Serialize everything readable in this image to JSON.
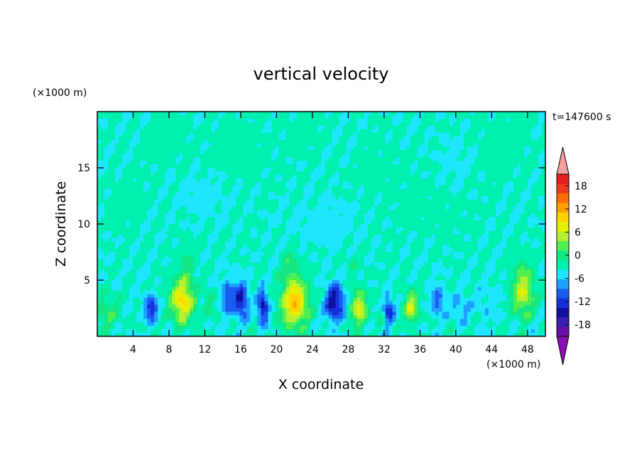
{
  "chart_data": {
    "type": "heatmap",
    "title": "vertical velocity",
    "xlabel": "X coordinate",
    "ylabel": "Z coordinate",
    "x_unit": "(×1000 m)",
    "y_unit": "(×1000 m)",
    "time_label": "t=147600 s",
    "xlim": [
      0,
      50
    ],
    "ylim": [
      0,
      20
    ],
    "x_ticks": [
      "4",
      "8",
      "12",
      "16",
      "20",
      "24",
      "28",
      "32",
      "36",
      "40",
      "44",
      "48"
    ],
    "y_ticks": [
      "5",
      "10",
      "15"
    ],
    "colorbar": {
      "range": [
        -21,
        21
      ],
      "step": 3,
      "tick_labels": [
        "18",
        "12",
        "6",
        "0",
        "-6",
        "-12",
        "-18"
      ],
      "colors": [
        "#6a0dad",
        "#3a1eb4",
        "#1010a0",
        "#1630d8",
        "#1a5cf0",
        "#1ea0ff",
        "#1ee6ff",
        "#00f0b0",
        "#14e684",
        "#50f050",
        "#b4f032",
        "#e6f000",
        "#ffd200",
        "#ffa000",
        "#ff6e00",
        "#f03c1e",
        "#e61e1e"
      ],
      "extend_low_color": "#8b10b4",
      "extend_high_color": "#f4a0a0"
    },
    "features": [
      {
        "x": 1.0,
        "z": 2.0,
        "amp": 6,
        "sx": 1.2,
        "sz": 1.6
      },
      {
        "x": 6.0,
        "z": 2.5,
        "amp": -12,
        "sx": 0.7,
        "sz": 1.1
      },
      {
        "x": 9.5,
        "z": 3.2,
        "amp": 16,
        "sx": 1.3,
        "sz": 1.9
      },
      {
        "x": 12.5,
        "z": 3.0,
        "amp": 4,
        "sx": 0.6,
        "sz": 1.2
      },
      {
        "x": 14.5,
        "z": 3.5,
        "amp": -9,
        "sx": 0.7,
        "sz": 1.4
      },
      {
        "x": 16.0,
        "z": 3.2,
        "amp": -14,
        "sx": 0.8,
        "sz": 1.5
      },
      {
        "x": 18.5,
        "z": 2.6,
        "amp": -14,
        "sx": 0.6,
        "sz": 1.5
      },
      {
        "x": 22.0,
        "z": 3.0,
        "amp": 18,
        "sx": 1.5,
        "sz": 2.1
      },
      {
        "x": 26.5,
        "z": 3.0,
        "amp": -16,
        "sx": 1.0,
        "sz": 1.5
      },
      {
        "x": 29.2,
        "z": 2.5,
        "amp": 13,
        "sx": 0.9,
        "sz": 1.6
      },
      {
        "x": 31.5,
        "z": 2.0,
        "amp": 3,
        "sx": 0.5,
        "sz": 1.0
      },
      {
        "x": 32.5,
        "z": 2.3,
        "amp": -12,
        "sx": 0.6,
        "sz": 1.1
      },
      {
        "x": 35.0,
        "z": 2.6,
        "amp": 12,
        "sx": 0.8,
        "sz": 1.4
      },
      {
        "x": 38.0,
        "z": 3.2,
        "amp": -8,
        "sx": 0.7,
        "sz": 1.3
      },
      {
        "x": 40.5,
        "z": 2.5,
        "amp": -5,
        "sx": 1.0,
        "sz": 1.0
      },
      {
        "x": 43.5,
        "z": 3.0,
        "amp": -2,
        "sx": 1.5,
        "sz": 2.0
      },
      {
        "x": 47.5,
        "z": 3.8,
        "amp": 12,
        "sx": 1.2,
        "sz": 2.0
      },
      {
        "x": 10.0,
        "z": 6.5,
        "amp": 4,
        "sx": 0.8,
        "sz": 1.5
      },
      {
        "x": 21.5,
        "z": 6.5,
        "amp": 5,
        "sx": 0.8,
        "sz": 1.3
      },
      {
        "x": 28.5,
        "z": 6.5,
        "amp": 3,
        "sx": 0.5,
        "sz": 1.0
      },
      {
        "x": 47.5,
        "z": 6.0,
        "amp": 3,
        "sx": 1.0,
        "sz": 1.2
      }
    ],
    "background_value": 0.2,
    "upper_patches": [
      {
        "x": 8,
        "z": 17.5,
        "amp": 1.5,
        "sx": 2.5,
        "sz": 2.0
      },
      {
        "x": 16,
        "z": 16.5,
        "amp": 1.6,
        "sx": 3.0,
        "sz": 2.5
      },
      {
        "x": 23,
        "z": 18.0,
        "amp": 1.4,
        "sx": 2.0,
        "sz": 1.5
      },
      {
        "x": 32,
        "z": 14.5,
        "amp": 1.2,
        "sx": 2.5,
        "sz": 2.5
      },
      {
        "x": 45,
        "z": 17.0,
        "amp": 1.6,
        "sx": 2.5,
        "sz": 2.5
      },
      {
        "x": 3,
        "z": 12.0,
        "amp": 1.2,
        "sx": 2.0,
        "sz": 2.0
      },
      {
        "x": 38,
        "z": 11.0,
        "amp": 1.2,
        "sx": 3.0,
        "sz": 2.0
      },
      {
        "x": 25,
        "z": 10.0,
        "amp": -1.3,
        "sx": 4.0,
        "sz": 2.0
      },
      {
        "x": 12,
        "z": 12.5,
        "amp": -1.2,
        "sx": 3.0,
        "sz": 2.0
      },
      {
        "x": 40,
        "z": 15.5,
        "amp": -1.2,
        "sx": 2.0,
        "sz": 2.0
      }
    ]
  }
}
